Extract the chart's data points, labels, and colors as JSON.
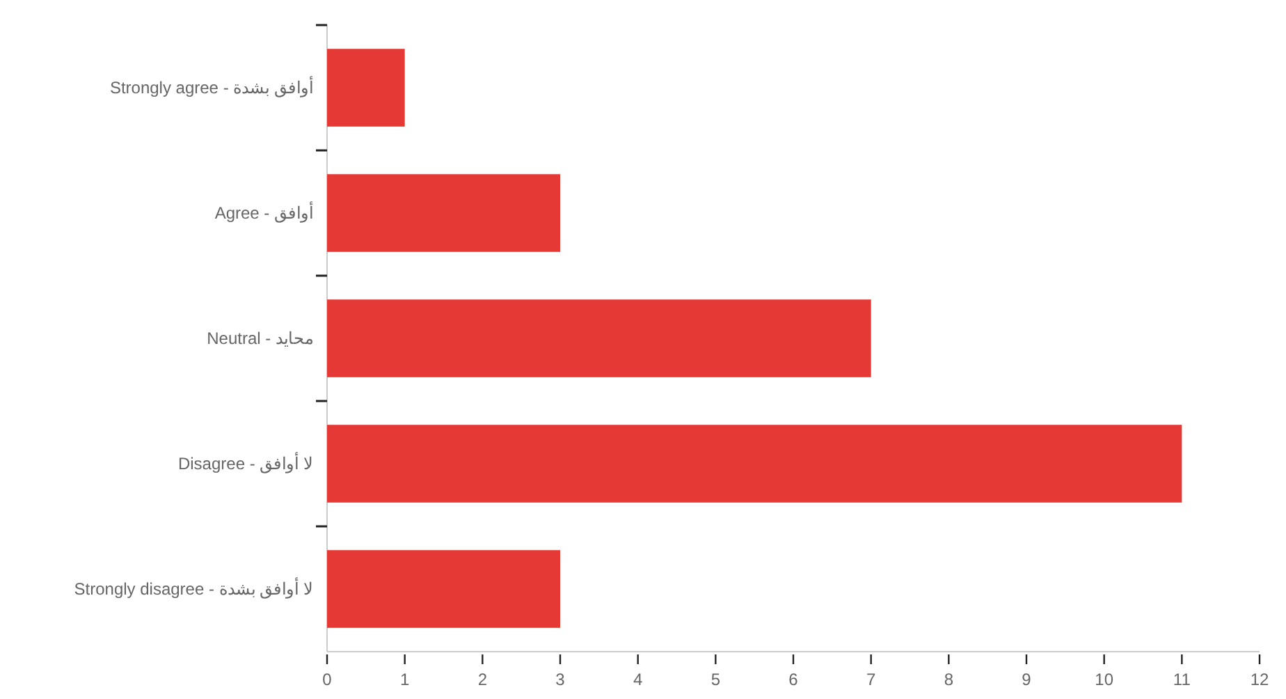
{
  "chart_data": {
    "type": "bar",
    "orientation": "horizontal",
    "categories": [
      "Strongly agree - أوافق بشدة",
      "Agree - أوافق",
      "Neutral - محايد",
      "Disagree - لا أوافق",
      "Strongly disagree - لا أوافق بشدة"
    ],
    "values": [
      1,
      3,
      7,
      11,
      3
    ],
    "color": "#e53935",
    "xlim": [
      0,
      12
    ],
    "xticks": [
      0,
      1,
      2,
      3,
      4,
      5,
      6,
      7,
      8,
      9,
      10,
      11,
      12
    ],
    "grid": false
  }
}
